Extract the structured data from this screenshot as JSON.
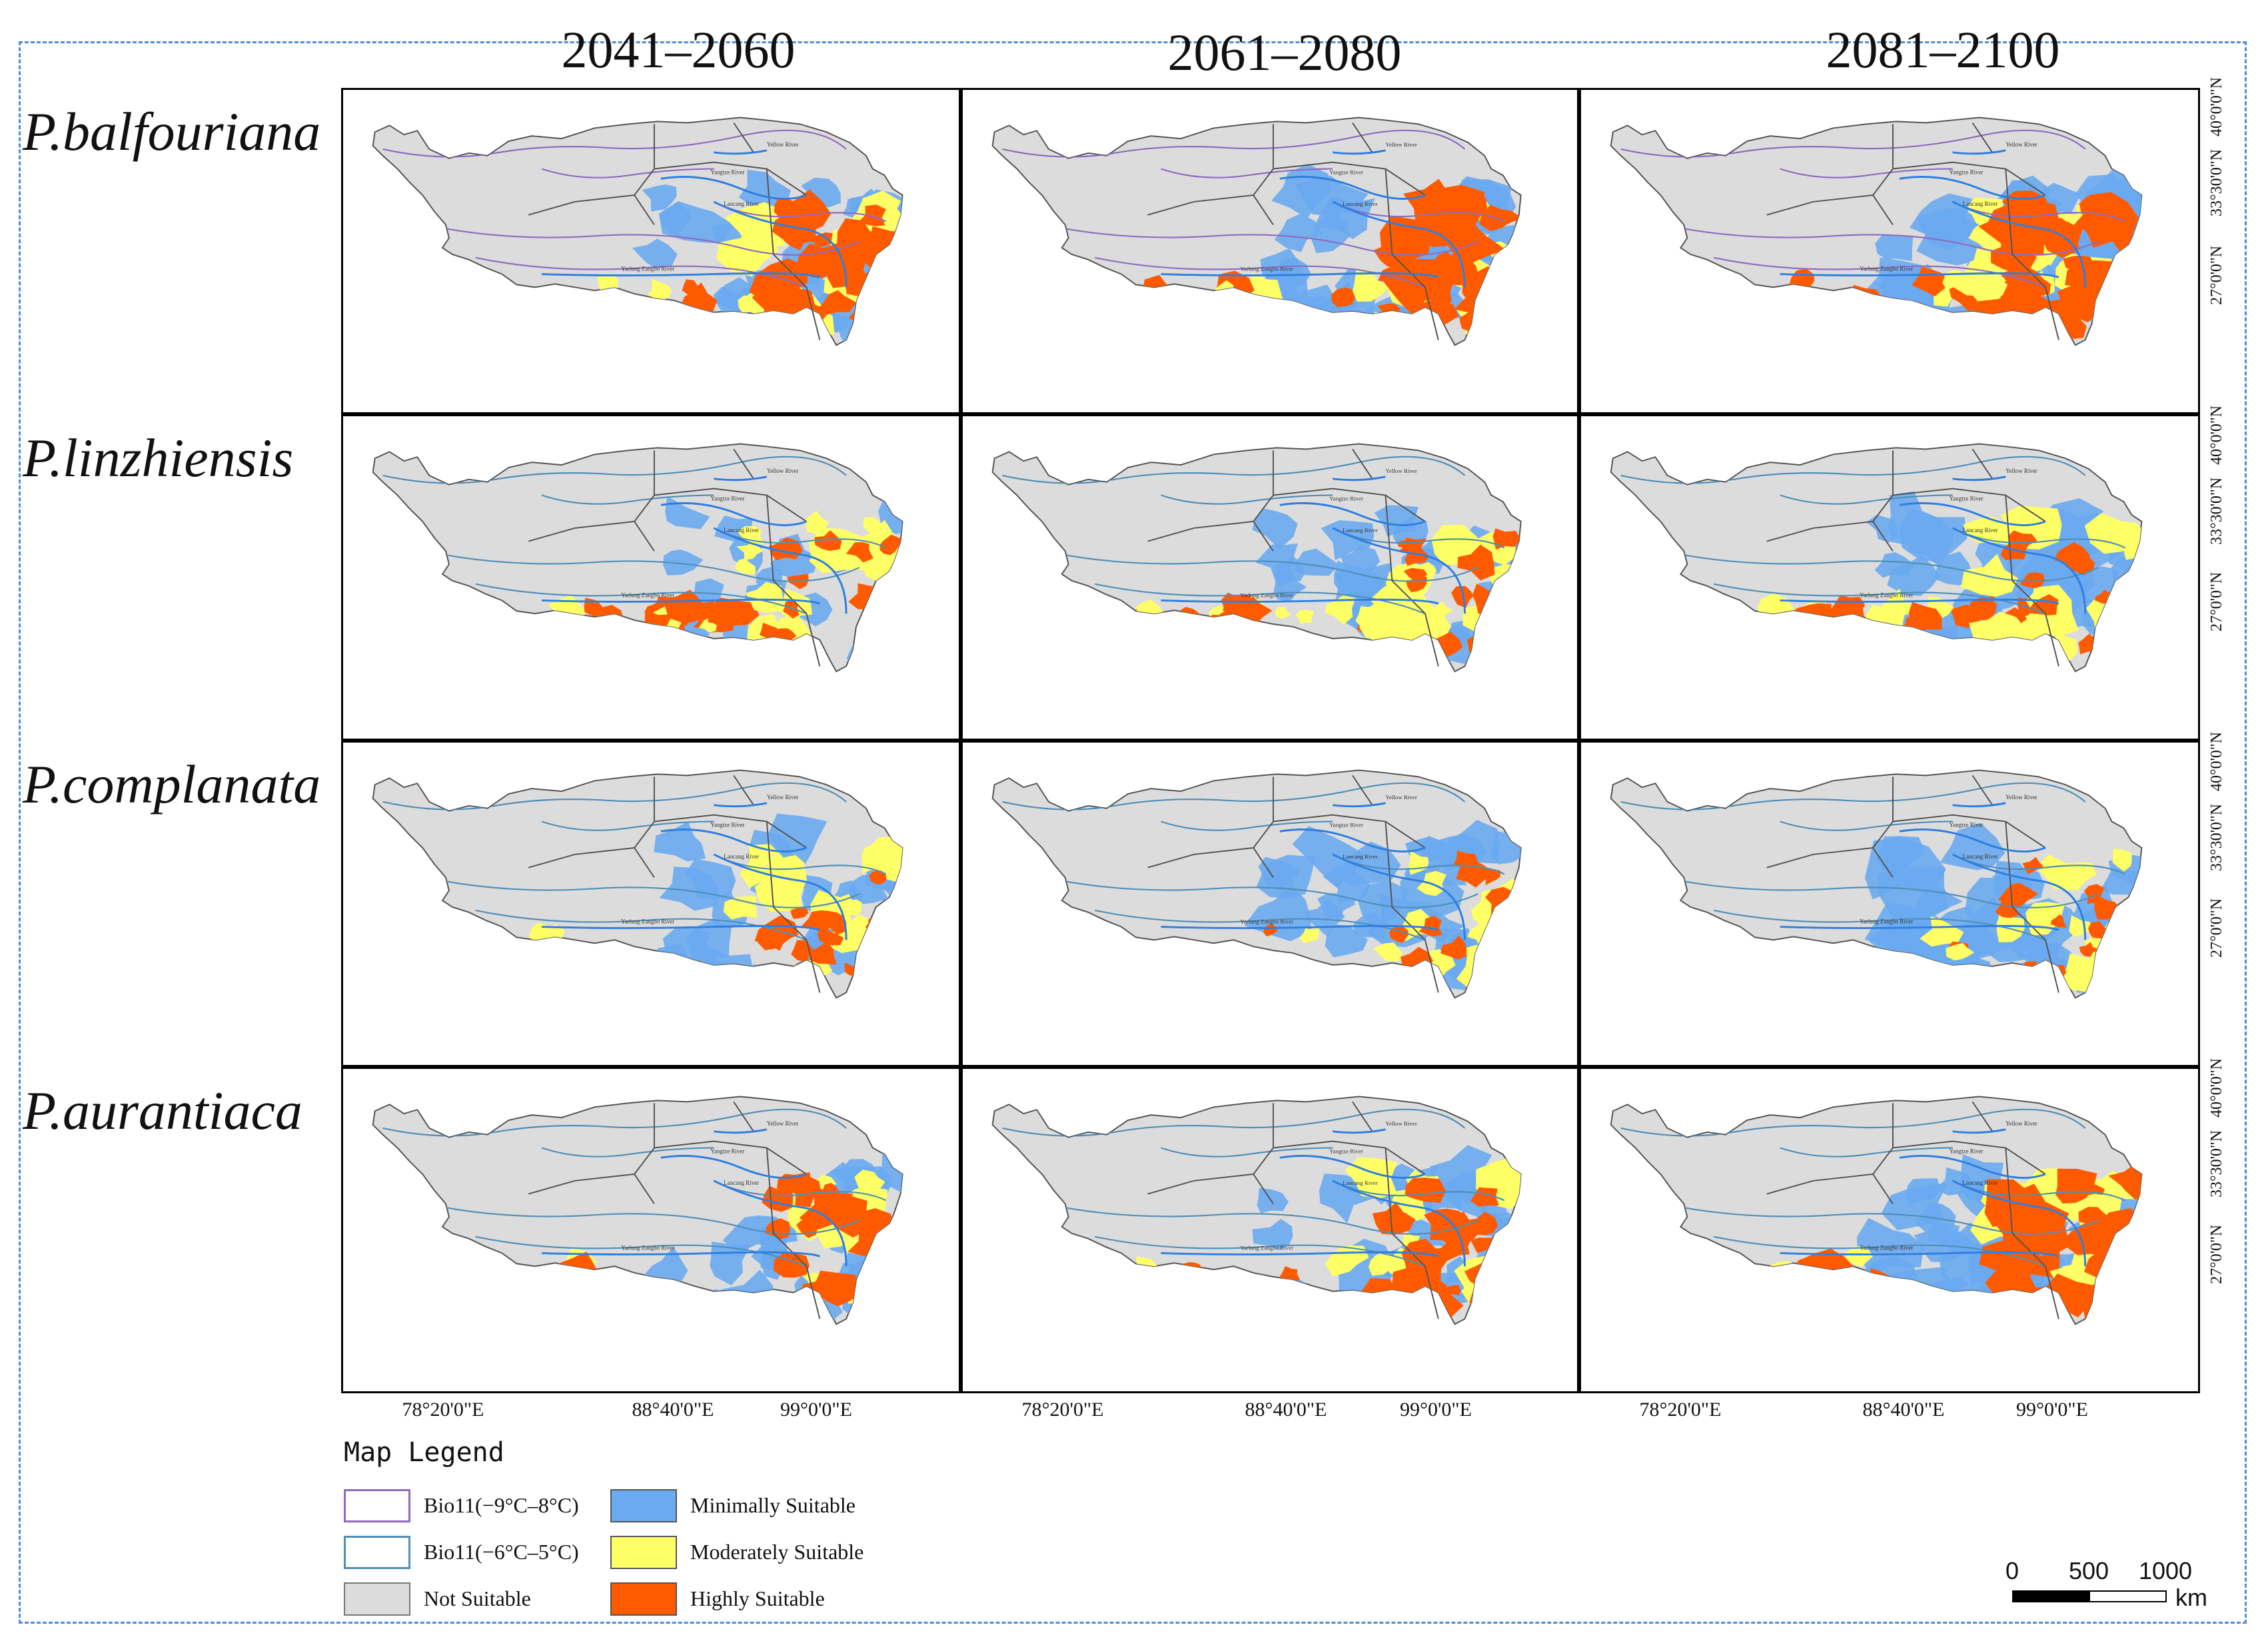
{
  "periods": [
    "2041–2060",
    "2061–2080",
    "2081–2100"
  ],
  "species": [
    "P.balfouriana",
    "P.linzhiensis",
    "P.complanata",
    "P.aurantiaca"
  ],
  "river_labels": [
    "Yangtze River",
    "Yellow River",
    "Lancang River",
    "Yarlung Zangbo River"
  ],
  "lat_labels": [
    "40°0'0\"N",
    "33°30'0\"N",
    "27°0'0\"N"
  ],
  "lon_labels": [
    "78°20'0\"E",
    "88°40'0\"E",
    "99°0'0\"E"
  ],
  "legend": {
    "title": "Map Legend",
    "items": [
      {
        "label": "Bio11(−9°C–8°C)",
        "style": "outline",
        "color": "#8e6bbf"
      },
      {
        "label": "Minimally Suitable",
        "style": "fill",
        "color": "#6aaaf0"
      },
      {
        "label": "Bio11(−6°C–5°C)",
        "style": "outline",
        "color": "#4f8fb8"
      },
      {
        "label": "Moderately Suitable",
        "style": "fill",
        "color": "#ffff66"
      },
      {
        "label": "Not Suitable",
        "style": "fill",
        "color": "#dcdcdc"
      },
      {
        "label": "Highly Suitable",
        "style": "fill",
        "color": "#ff5a00"
      }
    ]
  },
  "scale_bar": {
    "ticks": [
      "0",
      "500",
      "1000"
    ],
    "unit": "km"
  },
  "colors": {
    "not_suitable": "#dcdcdc",
    "minimal": "#6aaaf0",
    "moderate": "#ffff66",
    "high": "#ff5a00",
    "boundary": "#555555",
    "river": "#2f7fe0",
    "bio11_purple": "#8e6bbf",
    "bio11_blue": "#4f8fb8",
    "frame": "#4a8fd6"
  },
  "panels": [
    {
      "species": "P.balfouriana",
      "period": "2041–2060",
      "contour": "purple",
      "high": 0.9,
      "moderate": 0.6,
      "minimal": 0.55,
      "south_belt": 0.2
    },
    {
      "species": "P.balfouriana",
      "period": "2061–2080",
      "contour": "purple",
      "high": 1.0,
      "moderate": 0.55,
      "minimal": 0.6,
      "south_belt": 0.3
    },
    {
      "species": "P.balfouriana",
      "period": "2081–2100",
      "contour": "purple",
      "high": 1.0,
      "moderate": 0.65,
      "minimal": 0.8,
      "south_belt": 0.5
    },
    {
      "species": "P.linzhiensis",
      "period": "2041–2060",
      "contour": "blue",
      "high": 0.35,
      "moderate": 0.5,
      "minimal": 0.3,
      "south_belt": 0.7
    },
    {
      "species": "P.linzhiensis",
      "period": "2061–2080",
      "contour": "blue",
      "high": 0.4,
      "moderate": 0.5,
      "minimal": 0.45,
      "south_belt": 0.8
    },
    {
      "species": "P.linzhiensis",
      "period": "2081–2100",
      "contour": "blue",
      "high": 0.3,
      "moderate": 0.45,
      "minimal": 0.7,
      "south_belt": 0.75
    },
    {
      "species": "P.complanata",
      "period": "2041–2060",
      "contour": "blue",
      "high": 0.3,
      "moderate": 0.4,
      "minimal": 0.5,
      "south_belt": 0.15
    },
    {
      "species": "P.complanata",
      "period": "2061–2080",
      "contour": "blue",
      "high": 0.3,
      "moderate": 0.35,
      "minimal": 0.6,
      "south_belt": 0.1
    },
    {
      "species": "P.complanata",
      "period": "2081–2100",
      "contour": "blue",
      "high": 0.35,
      "moderate": 0.35,
      "minimal": 0.75,
      "south_belt": 0.15
    },
    {
      "species": "P.aurantiaca",
      "period": "2041–2060",
      "contour": "blue",
      "high": 0.65,
      "moderate": 0.35,
      "minimal": 0.45,
      "south_belt": 0.1
    },
    {
      "species": "P.aurantiaca",
      "period": "2061–2080",
      "contour": "blue",
      "high": 0.8,
      "moderate": 0.45,
      "minimal": 0.55,
      "south_belt": 0.15
    },
    {
      "species": "P.aurantiaca",
      "period": "2081–2100",
      "contour": "blue",
      "high": 1.0,
      "moderate": 0.3,
      "minimal": 0.75,
      "south_belt": 0.35
    }
  ]
}
